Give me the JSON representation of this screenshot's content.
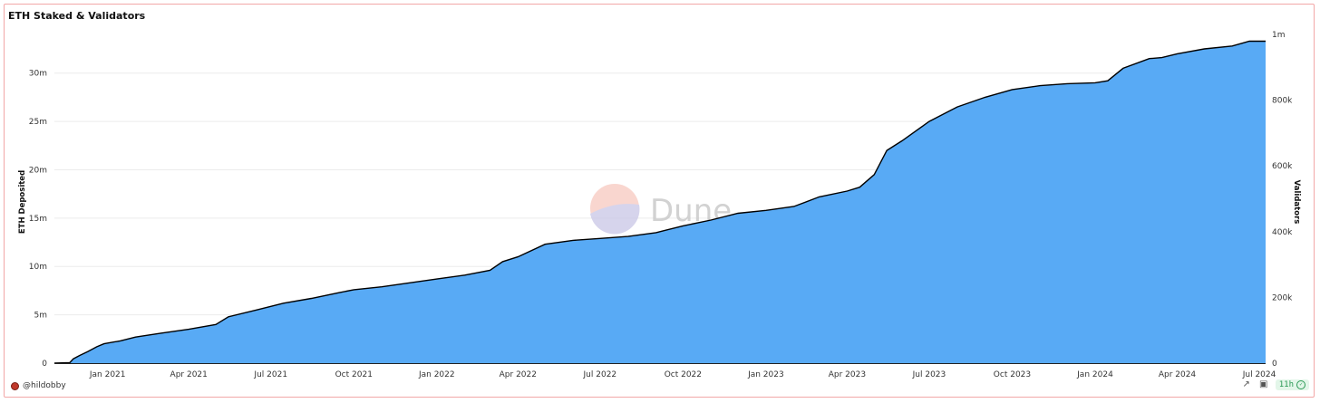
{
  "chart": {
    "title": "ETH Staked & Validators",
    "author": "@hildobby",
    "age_badge": "11h",
    "icons": {
      "share": "share-icon",
      "camera": "camera-icon",
      "avatar": "avatar-icon",
      "check": "check-icon"
    },
    "watermark": "Dune"
  },
  "chart_data": {
    "type": "area",
    "title": "ETH Staked & Validators",
    "ylabel": "ETH Deposited",
    "y2label": "Validators",
    "ylim": [
      0,
      34000000
    ],
    "y2lim": [
      0,
      1000000
    ],
    "yticks": [
      "0",
      "5m",
      "10m",
      "15m",
      "20m",
      "25m",
      "30m"
    ],
    "y2ticks": [
      "0",
      "200k",
      "400k",
      "600k",
      "800k",
      "1m"
    ],
    "xticks": [
      "Jan 2021",
      "Apr 2021",
      "Jul 2021",
      "Oct 2021",
      "Jan 2022",
      "Apr 2022",
      "Jul 2022",
      "Oct 2022",
      "Jan 2023",
      "Apr 2023",
      "Jul 2023",
      "Oct 2023",
      "Jan 2024",
      "Apr 2024",
      "Jul 2024"
    ],
    "grid": true,
    "colors": {
      "fill": "#58aaf5",
      "line": "#000000"
    },
    "series": [
      {
        "name": "ETH Deposited",
        "x": [
          "2020-11-03",
          "2020-11-20",
          "2020-11-24",
          "2020-12-01",
          "2020-12-10",
          "2020-12-20",
          "2020-12-28",
          "2021-01-15",
          "2021-02-01",
          "2021-03-01",
          "2021-04-01",
          "2021-05-01",
          "2021-05-15",
          "2021-06-15",
          "2021-07-15",
          "2021-08-15",
          "2021-09-15",
          "2021-10-01",
          "2021-11-01",
          "2021-12-01",
          "2022-01-01",
          "2022-02-01",
          "2022-03-01",
          "2022-03-15",
          "2022-04-01",
          "2022-05-01",
          "2022-06-01",
          "2022-07-01",
          "2022-08-01",
          "2022-09-01",
          "2022-10-01",
          "2022-11-01",
          "2022-12-01",
          "2023-01-01",
          "2023-02-01",
          "2023-03-01",
          "2023-04-01",
          "2023-04-15",
          "2023-05-01",
          "2023-05-15",
          "2023-06-01",
          "2023-07-01",
          "2023-08-01",
          "2023-09-01",
          "2023-10-01",
          "2023-11-01",
          "2023-12-01",
          "2024-01-01",
          "2024-01-15",
          "2024-02-01",
          "2024-03-01",
          "2024-03-15",
          "2024-04-01",
          "2024-05-01",
          "2024-06-01",
          "2024-06-20",
          "2024-07-08"
        ],
        "values": [
          0,
          50000,
          450000,
          800000,
          1200000,
          1700000,
          2000000,
          2300000,
          2700000,
          3100000,
          3500000,
          4000000,
          4800000,
          5500000,
          6200000,
          6700000,
          7300000,
          7600000,
          7900000,
          8300000,
          8700000,
          9100000,
          9600000,
          10500000,
          11000000,
          12300000,
          12700000,
          12900000,
          13100000,
          13500000,
          14200000,
          14800000,
          15500000,
          15800000,
          16200000,
          17200000,
          17800000,
          18200000,
          19500000,
          22000000,
          23000000,
          25000000,
          26500000,
          27500000,
          28300000,
          28700000,
          28900000,
          29000000,
          29200000,
          30500000,
          31500000,
          31600000,
          32000000,
          32500000,
          32800000,
          33300000,
          33300000
        ]
      }
    ]
  }
}
